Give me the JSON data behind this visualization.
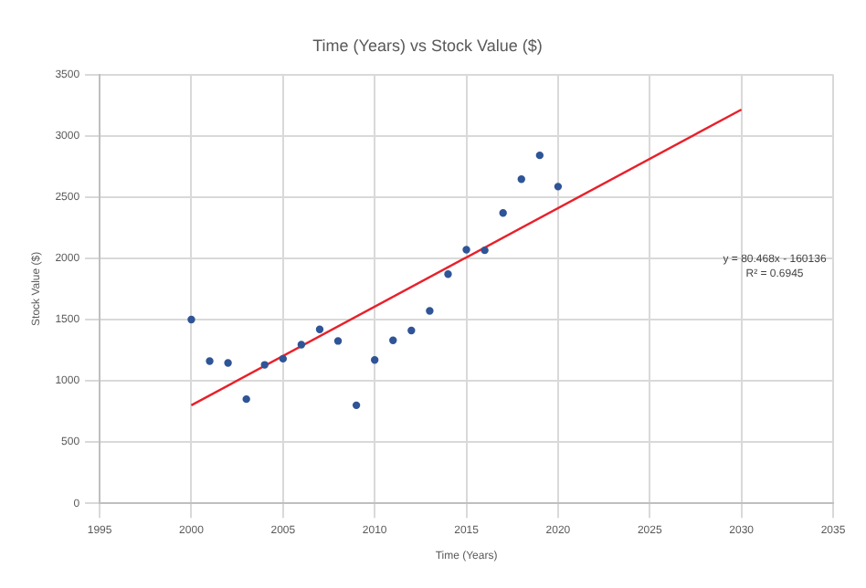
{
  "chart_data": {
    "type": "scatter",
    "title": "Time (Years) vs Stock Value ($)",
    "xlabel": "Time (Years)",
    "ylabel": "Stock Value ($)",
    "series": [
      {
        "marker": "circle",
        "color": "#2f5597",
        "x": [
          2000,
          2001,
          2002,
          2003,
          2004,
          2005,
          2006,
          2007,
          2008,
          2009,
          2010,
          2011,
          2012,
          2013,
          2014,
          2015,
          2016,
          2017,
          2018,
          2019,
          2020
        ],
        "values": [
          1500,
          1160,
          1145,
          850,
          1130,
          1180,
          1295,
          1420,
          1325,
          800,
          1170,
          1330,
          1410,
          1570,
          1870,
          2070,
          2065,
          2370,
          2645,
          2840,
          2585
        ]
      },
      {
        "type": "line",
        "marker": "none",
        "color": "#e8202a",
        "x": [
          2000,
          2030
        ],
        "values": [
          800,
          3214
        ]
      }
    ],
    "annotations": [
      "y = 80.468x - 160136",
      "R² = 0.6945"
    ],
    "xlim": [
      1995,
      2035
    ],
    "xticks": [
      1995,
      2000,
      2005,
      2010,
      2015,
      2020,
      2025,
      2030,
      2035
    ],
    "ylim": [
      0,
      3500
    ],
    "yticks": [
      0,
      500,
      1000,
      1500,
      2000,
      2500,
      3000,
      3500
    ],
    "grid": true,
    "legend": false
  }
}
